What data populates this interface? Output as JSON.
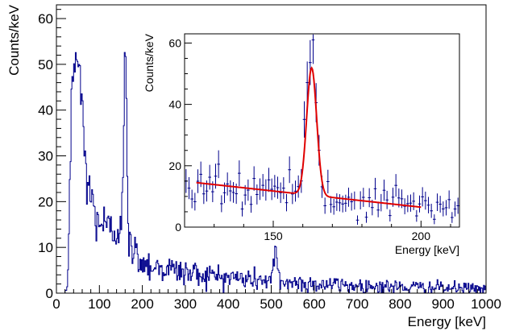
{
  "chart_data": [
    {
      "type": "histogram",
      "xlabel": "Energy [keV]",
      "ylabel": "Counts/keV",
      "xlim": [
        0,
        1000
      ],
      "ylim": [
        0,
        63
      ],
      "xticks": [
        "0",
        "100",
        "200",
        "300",
        "400",
        "500",
        "600",
        "700",
        "800",
        "900",
        "1000"
      ],
      "yticks": [
        "0",
        "10",
        "20",
        "30",
        "40",
        "50",
        "60"
      ],
      "grid": false,
      "line_color": "#00008b",
      "bin_width": 2,
      "profile": {
        "x": [
          0,
          20,
          28,
          35,
          40,
          45,
          50,
          55,
          60,
          65,
          70,
          80,
          90,
          100,
          110,
          120,
          130,
          140,
          150,
          155,
          160,
          163,
          166,
          170,
          180,
          190,
          200,
          220,
          250,
          300,
          350,
          400,
          450,
          500,
          510,
          520,
          550,
          600,
          650,
          700,
          750,
          800,
          850,
          900,
          950,
          1000
        ],
        "y": [
          0,
          0,
          5,
          40,
          52,
          50,
          52,
          48,
          38,
          32,
          26,
          21,
          17,
          16,
          15,
          14,
          13,
          14,
          16,
          30,
          54,
          38,
          12,
          11,
          9,
          8,
          7,
          6,
          5.5,
          4.5,
          4,
          3.5,
          3,
          2.8,
          8,
          2.6,
          2.3,
          2,
          1.8,
          1.6,
          1.5,
          1.3,
          1.2,
          1.1,
          1,
          0.9
        ]
      }
    },
    {
      "type": "histogram+fit",
      "xlabel": "Energy [keV]",
      "ylabel": "Counts/keV",
      "xlim": [
        120,
        213
      ],
      "ylim": [
        0,
        63
      ],
      "xticks": [
        "150",
        "200"
      ],
      "yticks": [
        "0",
        "20",
        "40",
        "60"
      ],
      "grid": false,
      "line_color": "#00008b",
      "fit_color": "#e00000",
      "bin_width": 1,
      "fit": {
        "background_start": [
          124,
          14.5
        ],
        "background_end": [
          200,
          6.5
        ],
        "peak_center": 163,
        "peak_amplitude": 41.5,
        "peak_sigma": 1.7
      }
    }
  ]
}
